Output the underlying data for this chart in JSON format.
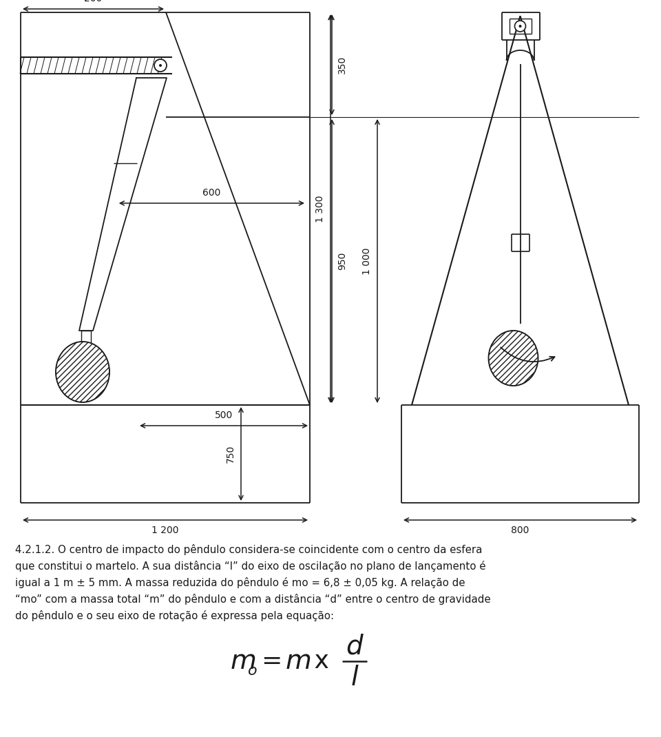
{
  "bg_color": "#ffffff",
  "line_color": "#1a1a1a",
  "text_color": "#1a1a1a",
  "figsize": [
    9.6,
    10.7
  ],
  "dpi": 100,
  "paragraph_lines": [
    "4.2.1.2. O centro de impacto do pêndulo considera-se coincidente com o centro da esfera",
    "que constitui o martelo. A sua distância “l” do eixo de oscilação no plano de lançamento é",
    "igual a 1 m ± 5 mm. A massa reduzida do pêndulo é mo = 6,8 ± 0,05 kg. A relação de",
    "“mo” com a massa total “m” do pêndulo e com a distância “d” entre o centro de gravidade",
    "do pêndulo e o seu eixo de rotação é expressa pela equação:"
  ]
}
